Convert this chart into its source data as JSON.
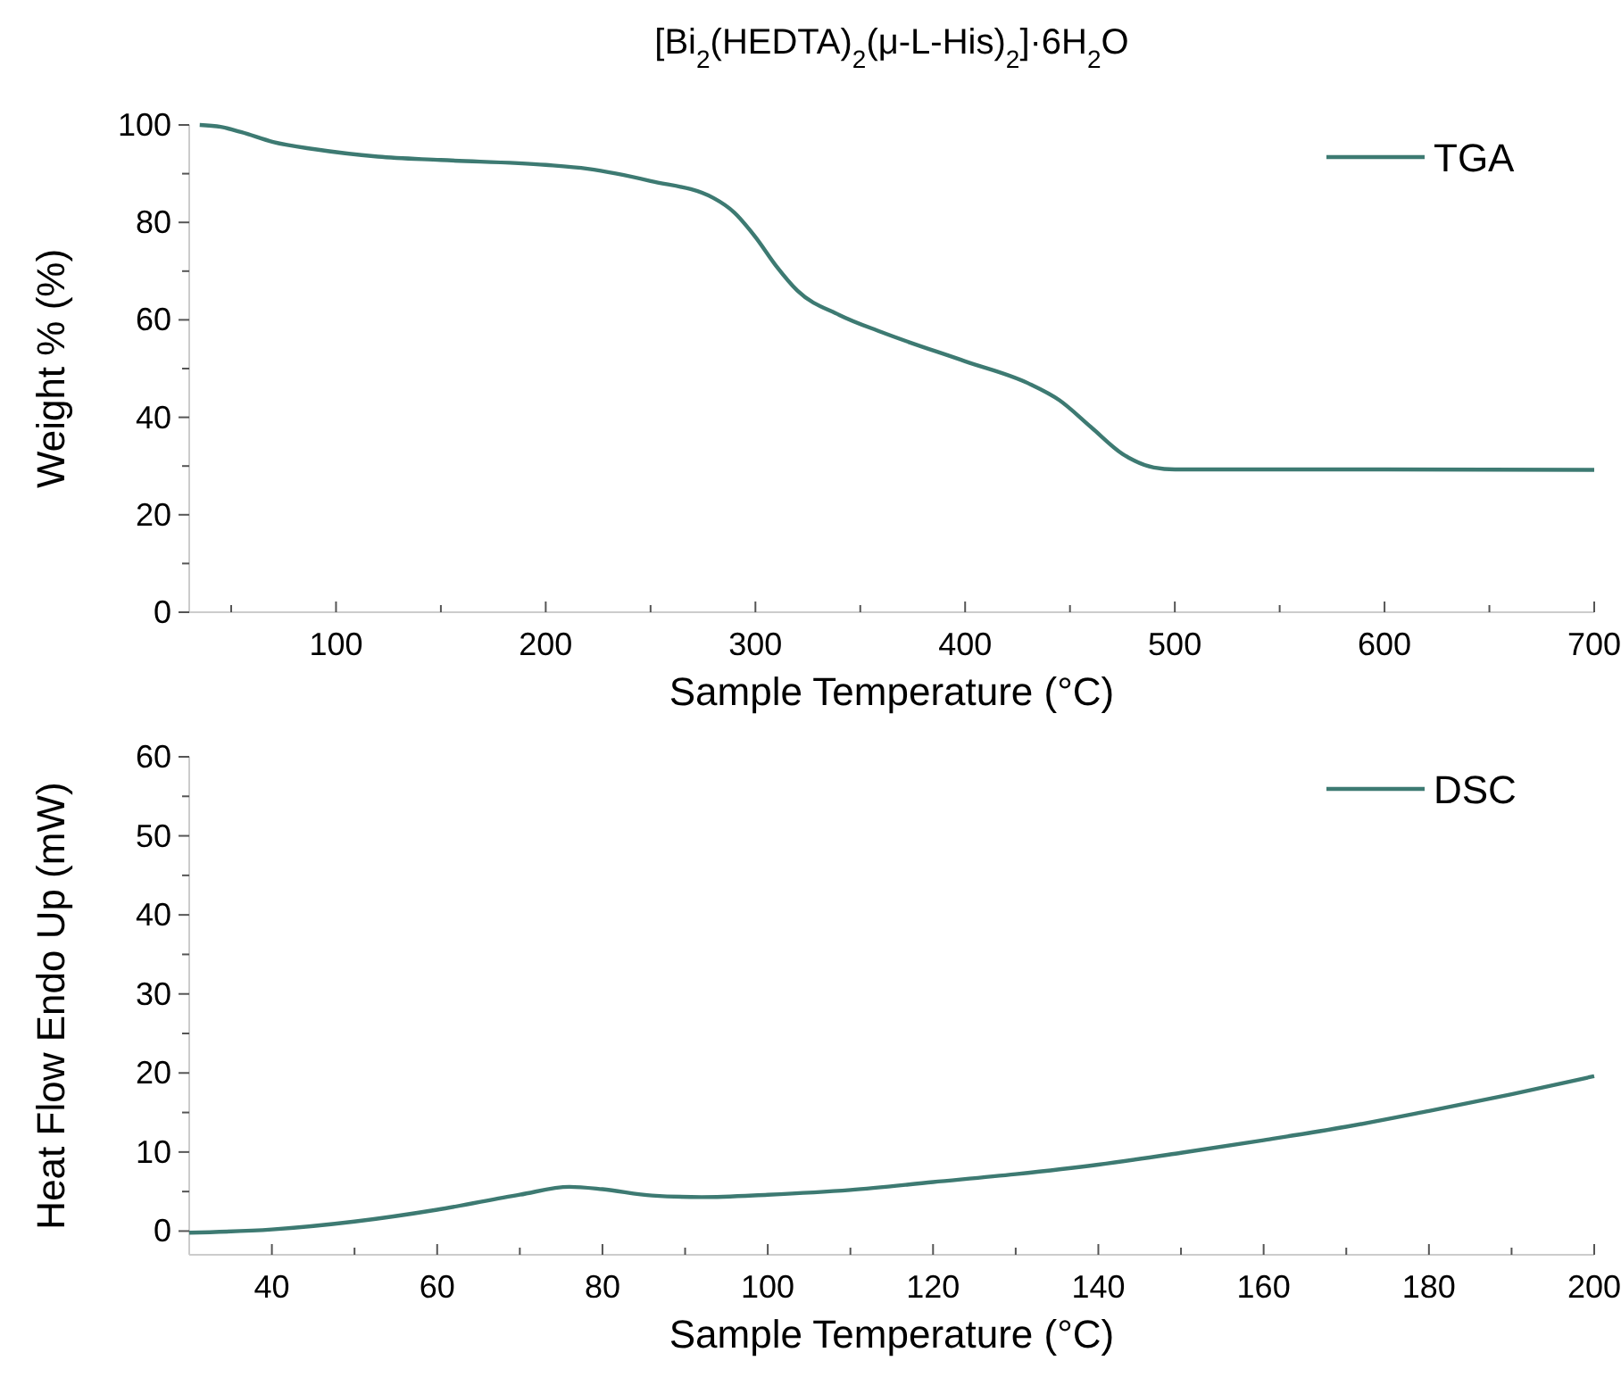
{
  "chart_data": [
    {
      "type": "line",
      "title": "[Bi$_{2}$(HEDTA)$_{2}$(μ-L-His)$_{2}$]·6H$_{2}$O",
      "xlabel": "Sample Temperature (°C)",
      "ylabel": "Weight % (%)",
      "xlim": [
        30,
        700
      ],
      "xticks": [
        {
          "value": 50,
          "label": null
        },
        100,
        {
          "value": 150,
          "label": null
        },
        200,
        {
          "value": 250,
          "label": null
        },
        300,
        {
          "value": 350,
          "label": null
        },
        400,
        {
          "value": 450,
          "label": null
        },
        500,
        {
          "value": 550,
          "label": null
        },
        600,
        {
          "value": 650,
          "label": null
        },
        700
      ],
      "ylim": [
        0,
        100
      ],
      "yticks": [
        0,
        {
          "value": 10,
          "label": null
        },
        20,
        {
          "value": 30,
          "label": null
        },
        40,
        {
          "value": 50,
          "label": null
        },
        60,
        {
          "value": 70,
          "label": null
        },
        80,
        {
          "value": 90,
          "label": null
        },
        100
      ],
      "grid": false,
      "legend": "top right",
      "line_style": "solid",
      "marker": "none",
      "series": [
        {
          "name": "TGA",
          "color": "#3d7a72",
          "x": [
            35,
            45,
            55,
            70,
            90,
            120,
            150,
            200,
            220,
            250,
            280,
            290,
            300,
            310,
            320,
            340,
            360,
            400,
            430,
            445,
            460,
            475,
            490,
            500,
            600,
            700
          ],
          "values": [
            100,
            99.6,
            98.5,
            96.5,
            95,
            93.5,
            92.8,
            91.8,
            91,
            88.5,
            85,
            82,
            77,
            71,
            66,
            61,
            57.5,
            51.5,
            47,
            43.5,
            38,
            32.5,
            29.7,
            29.3,
            29.3,
            29.2
          ]
        }
      ]
    },
    {
      "type": "line",
      "xlabel": "Sample Temperature (°C)",
      "ylabel": "Heat Flow Endo Up (mW)",
      "xlim": [
        30,
        200
      ],
      "xticks": [
        40,
        {
          "value": 50,
          "label": null
        },
        60,
        {
          "value": 70,
          "label": null
        },
        80,
        {
          "value": 90,
          "label": null
        },
        100,
        {
          "value": 110,
          "label": null
        },
        120,
        {
          "value": 130,
          "label": null
        },
        140,
        {
          "value": 150,
          "label": null
        },
        160,
        {
          "value": 170,
          "label": null
        },
        180,
        {
          "value": 190,
          "label": null
        },
        200
      ],
      "ylim": [
        -3,
        60
      ],
      "yticks": [
        0,
        {
          "value": 5,
          "label": null
        },
        10,
        {
          "value": 15,
          "label": null
        },
        20,
        {
          "value": 25,
          "label": null
        },
        30,
        {
          "value": 35,
          "label": null
        },
        40,
        {
          "value": 45,
          "label": null
        },
        50,
        {
          "value": 55,
          "label": null
        },
        60
      ],
      "grid": false,
      "legend": "top right",
      "line_style": "solid",
      "marker": "none",
      "series": [
        {
          "name": "DSC",
          "color": "#3d7a72",
          "x": [
            30,
            40,
            50,
            60,
            70,
            76,
            80,
            86,
            92,
            100,
            110,
            120,
            130,
            140,
            150,
            160,
            170,
            180,
            190,
            200
          ],
          "values": [
            -0.2,
            0.2,
            1.2,
            2.7,
            4.6,
            5.6,
            5.3,
            4.5,
            4.3,
            4.6,
            5.2,
            6.2,
            7.2,
            8.4,
            9.9,
            11.5,
            13.2,
            15.2,
            17.3,
            19.6
          ]
        }
      ]
    }
  ]
}
